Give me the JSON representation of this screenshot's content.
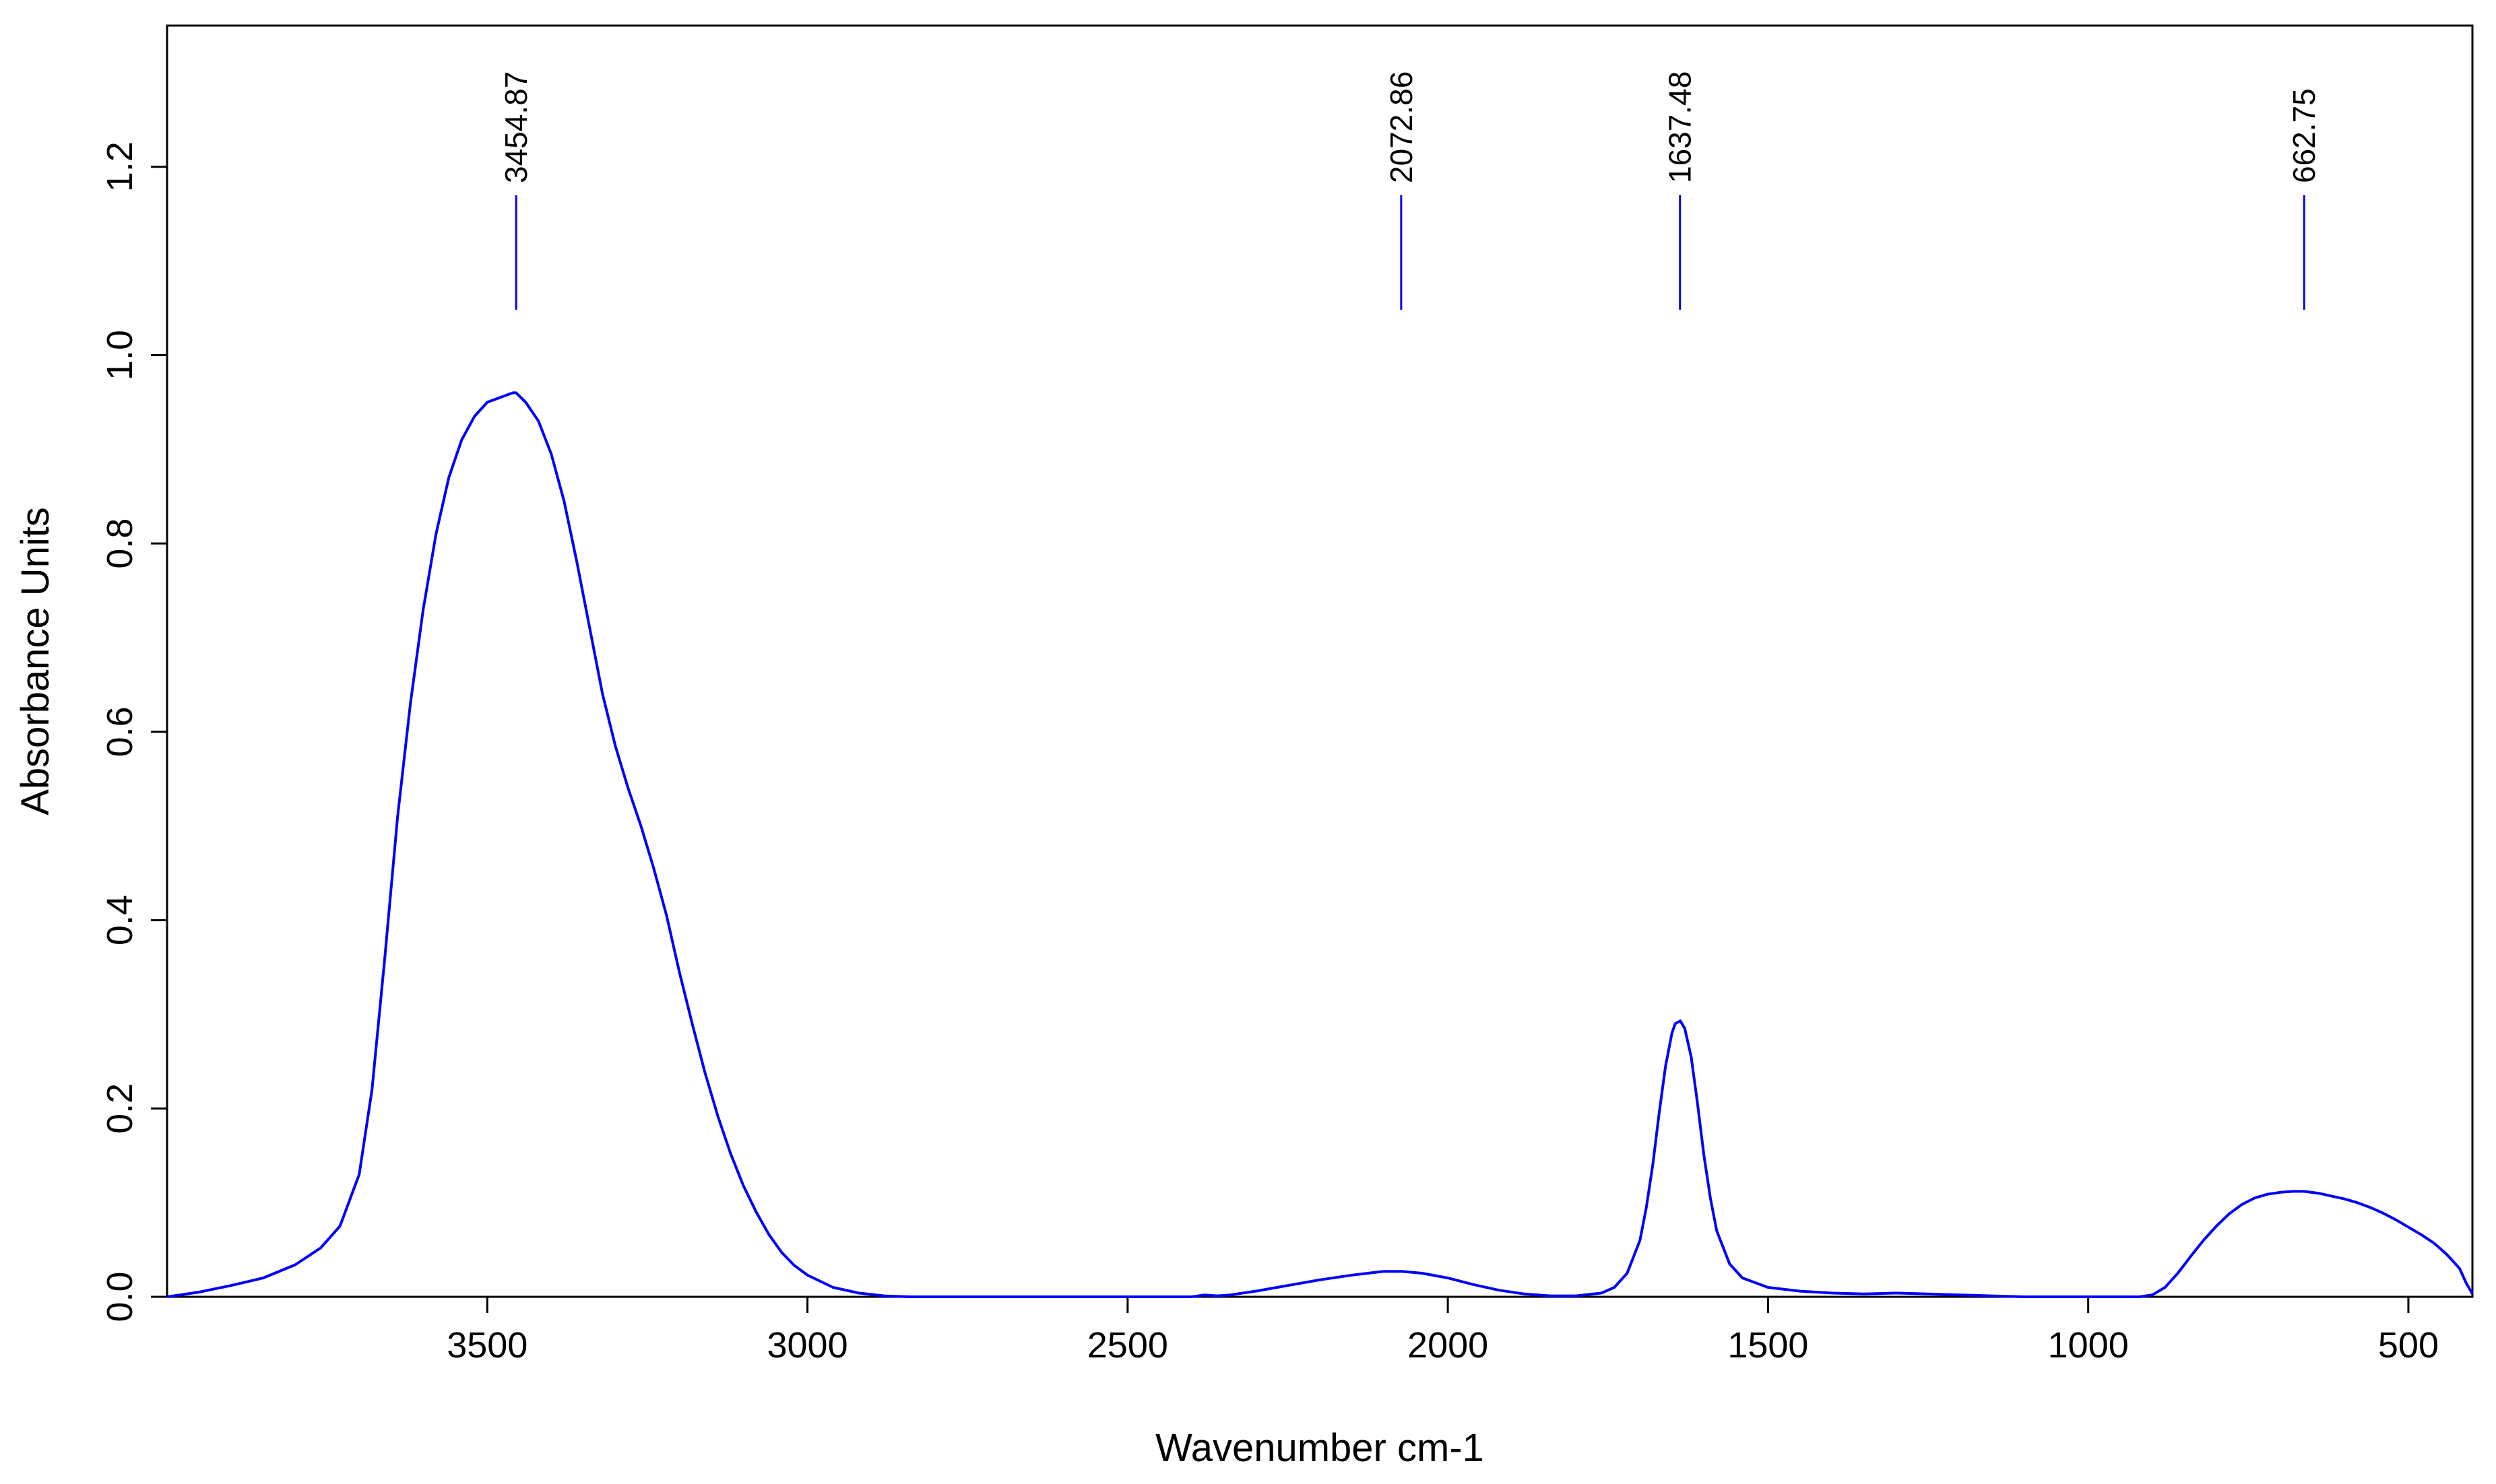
{
  "chart_data": {
    "type": "line",
    "title": "",
    "xlabel": "Wavenumber cm-1",
    "ylabel": "Absorbance Units",
    "x_reversed": true,
    "xlim": [
      4000,
      400
    ],
    "ylim": [
      0,
      1.35
    ],
    "grid": false,
    "legend": "none",
    "line_color": "#0000ff",
    "peak_marker_color": "#0000ff",
    "x_ticks": [
      {
        "value": 3500,
        "label": "3500"
      },
      {
        "value": 3000,
        "label": "3000"
      },
      {
        "value": 2500,
        "label": "2500"
      },
      {
        "value": 2000,
        "label": "2000"
      },
      {
        "value": 1500,
        "label": "1500"
      },
      {
        "value": 1000,
        "label": "1000"
      },
      {
        "value": 500,
        "label": "500"
      }
    ],
    "y_ticks": [
      {
        "value": 0.0,
        "label": "0.0"
      },
      {
        "value": 0.2,
        "label": "0.2"
      },
      {
        "value": 0.4,
        "label": "0.4"
      },
      {
        "value": 0.6,
        "label": "0.6"
      },
      {
        "value": 0.8,
        "label": "0.8"
      },
      {
        "value": 1.0,
        "label": "1.0"
      },
      {
        "value": 1.2,
        "label": "1.2"
      }
    ],
    "peaks": [
      {
        "x": 3454.87,
        "label": "3454.87"
      },
      {
        "x": 2072.86,
        "label": "2072.86"
      },
      {
        "x": 1637.48,
        "label": "1637.48"
      },
      {
        "x": 662.75,
        "label": "662.75"
      }
    ],
    "series": [
      {
        "x": [
          4000,
          3950,
          3900,
          3850,
          3800,
          3760,
          3730,
          3700,
          3680,
          3660,
          3640,
          3620,
          3600,
          3580,
          3560,
          3540,
          3520,
          3500,
          3480,
          3460,
          3455,
          3440,
          3420,
          3400,
          3380,
          3360,
          3340,
          3320,
          3300,
          3280,
          3260,
          3240,
          3220,
          3200,
          3180,
          3160,
          3140,
          3120,
          3100,
          3080,
          3060,
          3040,
          3020,
          3000,
          2960,
          2920,
          2880,
          2840,
          2800,
          2600,
          2400,
          2380,
          2360,
          2340,
          2300,
          2250,
          2200,
          2150,
          2100,
          2072,
          2040,
          2000,
          1960,
          1920,
          1880,
          1840,
          1800,
          1760,
          1740,
          1720,
          1700,
          1690,
          1680,
          1670,
          1660,
          1650,
          1645,
          1637,
          1630,
          1620,
          1610,
          1600,
          1590,
          1580,
          1560,
          1540,
          1500,
          1450,
          1400,
          1350,
          1300,
          1250,
          1200,
          1150,
          1100,
          1050,
          1000,
          950,
          920,
          900,
          880,
          860,
          840,
          820,
          800,
          780,
          760,
          740,
          720,
          700,
          680,
          663,
          640,
          620,
          600,
          580,
          560,
          540,
          520,
          500,
          480,
          460,
          440,
          420,
          410,
          400
        ],
        "y": [
          0.0,
          0.005,
          0.012,
          0.02,
          0.034,
          0.052,
          0.075,
          0.13,
          0.22,
          0.36,
          0.51,
          0.63,
          0.73,
          0.81,
          0.87,
          0.91,
          0.935,
          0.95,
          0.955,
          0.96,
          0.96,
          0.95,
          0.93,
          0.895,
          0.845,
          0.78,
          0.71,
          0.64,
          0.585,
          0.54,
          0.5,
          0.455,
          0.405,
          0.345,
          0.29,
          0.238,
          0.192,
          0.152,
          0.118,
          0.09,
          0.066,
          0.047,
          0.033,
          0.023,
          0.01,
          0.004,
          0.001,
          0.0,
          0.0,
          0.0,
          0.0,
          0.002,
          0.001,
          0.002,
          0.006,
          0.012,
          0.018,
          0.023,
          0.027,
          0.027,
          0.025,
          0.02,
          0.013,
          0.007,
          0.003,
          0.001,
          0.001,
          0.004,
          0.01,
          0.025,
          0.06,
          0.095,
          0.14,
          0.195,
          0.245,
          0.28,
          0.29,
          0.293,
          0.285,
          0.255,
          0.205,
          0.15,
          0.105,
          0.07,
          0.035,
          0.02,
          0.01,
          0.006,
          0.004,
          0.003,
          0.004,
          0.003,
          0.002,
          0.001,
          0.0,
          0.0,
          0.0,
          0.0,
          0.0,
          0.002,
          0.01,
          0.025,
          0.043,
          0.06,
          0.075,
          0.088,
          0.098,
          0.105,
          0.109,
          0.111,
          0.112,
          0.112,
          0.11,
          0.107,
          0.104,
          0.1,
          0.095,
          0.089,
          0.082,
          0.074,
          0.066,
          0.057,
          0.045,
          0.03,
          0.015,
          0.003
        ]
      }
    ]
  }
}
